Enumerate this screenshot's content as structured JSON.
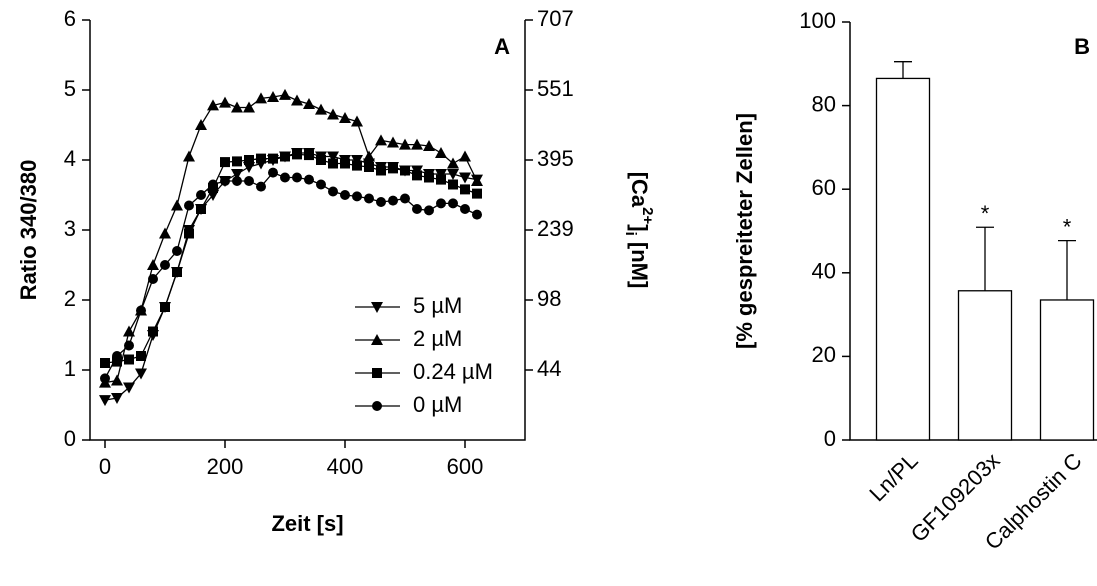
{
  "chart_data": [
    {
      "type": "line",
      "annotation": "A",
      "xlabel": "Zeit [s]",
      "ylabel": "Ratio 340/380",
      "y2label_parts": [
        "[Ca",
        "2+",
        "]",
        "i",
        " [nM]"
      ],
      "xlim": [
        -25,
        700
      ],
      "xticks": [
        0,
        200,
        400,
        600
      ],
      "ylim": [
        0,
        6
      ],
      "yticks": [
        0,
        1,
        2,
        3,
        4,
        5,
        6
      ],
      "y2ticks": [
        707,
        551,
        395,
        239,
        98,
        44
      ],
      "y2ticks_ratio": [
        6,
        5,
        4,
        3,
        2,
        1
      ],
      "x": [
        0,
        20,
        40,
        60,
        80,
        100,
        120,
        140,
        160,
        180,
        200,
        220,
        240,
        260,
        280,
        300,
        320,
        340,
        360,
        380,
        400,
        420,
        440,
        460,
        480,
        500,
        520,
        540,
        560,
        580,
        600,
        620
      ],
      "series": [
        {
          "name": "5 µM",
          "color": "#000",
          "marker": "v",
          "values": [
            0.57,
            0.6,
            0.75,
            0.95,
            1.5,
            1.9,
            2.4,
            3.0,
            3.3,
            3.5,
            3.7,
            3.8,
            3.9,
            3.95,
            4.0,
            4.05,
            4.1,
            4.1,
            4.05,
            4.05,
            4.0,
            4.0,
            3.95,
            3.9,
            3.9,
            3.85,
            3.85,
            3.8,
            3.8,
            3.8,
            3.75,
            3.72
          ]
        },
        {
          "name": "2 µM",
          "color": "#000",
          "marker": "^",
          "values": [
            0.82,
            0.85,
            1.55,
            1.85,
            2.5,
            2.95,
            3.35,
            4.05,
            4.5,
            4.78,
            4.82,
            4.75,
            4.75,
            4.88,
            4.9,
            4.93,
            4.85,
            4.8,
            4.72,
            4.65,
            4.6,
            4.55,
            4.05,
            4.28,
            4.25,
            4.22,
            4.22,
            4.2,
            4.1,
            3.95,
            4.05,
            3.7
          ]
        },
        {
          "name": "0.24 µM",
          "color": "#000",
          "marker": "s",
          "values": [
            1.1,
            1.12,
            1.15,
            1.2,
            1.55,
            1.9,
            2.4,
            2.95,
            3.3,
            3.6,
            3.97,
            3.98,
            4.0,
            4.02,
            4.02,
            4.05,
            4.08,
            4.07,
            4.0,
            3.95,
            3.95,
            3.92,
            3.9,
            3.85,
            3.88,
            3.85,
            3.78,
            3.75,
            3.72,
            3.65,
            3.58,
            3.52
          ]
        },
        {
          "name": "0 µM",
          "color": "#000",
          "marker": "o",
          "values": [
            0.88,
            1.2,
            1.35,
            1.85,
            2.3,
            2.5,
            2.7,
            3.35,
            3.5,
            3.65,
            3.7,
            3.7,
            3.7,
            3.62,
            3.82,
            3.75,
            3.75,
            3.72,
            3.65,
            3.55,
            3.5,
            3.48,
            3.45,
            3.4,
            3.42,
            3.45,
            3.3,
            3.28,
            3.38,
            3.38,
            3.3,
            3.22
          ]
        }
      ]
    },
    {
      "type": "bar",
      "annotation": "B",
      "ylabel": "[% gespreiteter Zellen]",
      "ylim": [
        0,
        100
      ],
      "yticks": [
        0,
        20,
        40,
        60,
        80,
        100
      ],
      "categories": [
        "Ln/PL",
        "GF109203x",
        "Calphostin C"
      ],
      "values": [
        86.5,
        35.7,
        33.5
      ],
      "errors": [
        4,
        15.2,
        14.2
      ],
      "significance": [
        null,
        "*",
        "*"
      ],
      "color": "#fff"
    }
  ]
}
